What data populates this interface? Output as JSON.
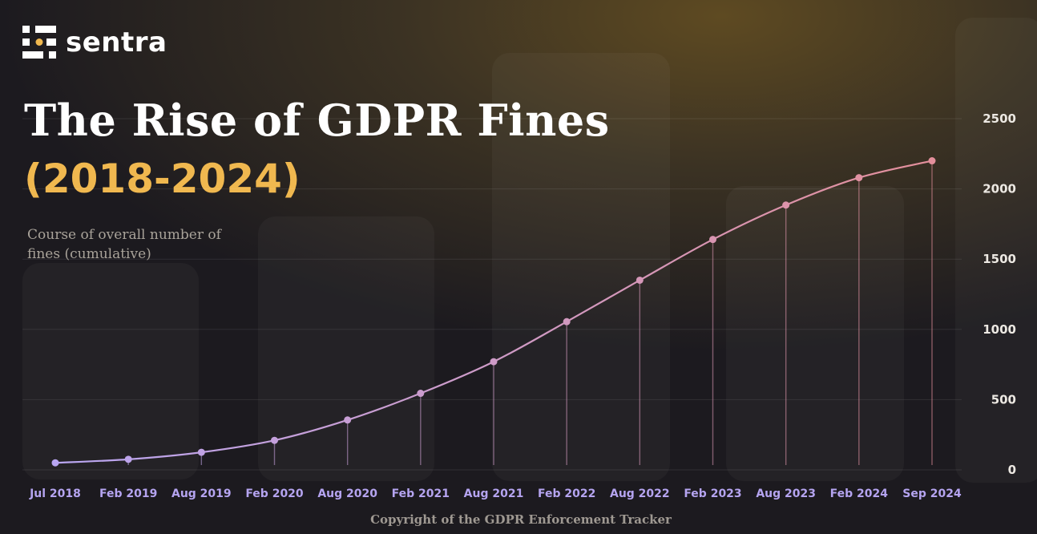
{
  "brand": {
    "name": "sentra",
    "logo_icon": "sentra-logo-icon"
  },
  "title": "The Rise of GDPR Fines",
  "subtitle": "(2018-2024)",
  "caption": "Course of overall number of fines (cumulative)",
  "copyright": "Copyright of the GDPR Enforcement Tracker",
  "colors": {
    "accent": "#f0b84f",
    "line_start": "#b9a6f2",
    "line_end": "#e38f9b"
  },
  "chart_data": {
    "type": "line",
    "categories": [
      "Jul 2018",
      "Feb 2019",
      "Aug 2019",
      "Feb 2020",
      "Aug 2020",
      "Feb 2021",
      "Aug 2021",
      "Feb 2022",
      "Aug 2022",
      "Feb 2023",
      "Aug 2023",
      "Feb 2024",
      "Sep 2024"
    ],
    "values": [
      50,
      75,
      125,
      210,
      355,
      545,
      770,
      1055,
      1350,
      1640,
      1885,
      2080,
      2200
    ],
    "yticks": [
      0,
      500,
      1000,
      1500,
      2000,
      2500
    ],
    "ylim": [
      0,
      2500
    ],
    "grid": true,
    "y_axis_side": "right"
  }
}
